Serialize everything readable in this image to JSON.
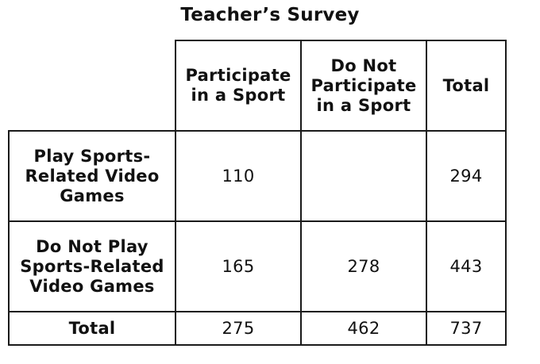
{
  "title": "Teacher’s Survey",
  "table": {
    "column_headers": [
      "Participate in a Sport",
      "Do Not Participate in a Sport",
      "Total"
    ],
    "rows": [
      {
        "label": "Play Sports-Related Video Games",
        "cells": [
          "110",
          "",
          "294"
        ]
      },
      {
        "label": "Do Not Play Sports-Related Video Games",
        "cells": [
          "165",
          "278",
          "443"
        ]
      },
      {
        "label": "Total",
        "cells": [
          "275",
          "462",
          "737"
        ]
      }
    ]
  }
}
